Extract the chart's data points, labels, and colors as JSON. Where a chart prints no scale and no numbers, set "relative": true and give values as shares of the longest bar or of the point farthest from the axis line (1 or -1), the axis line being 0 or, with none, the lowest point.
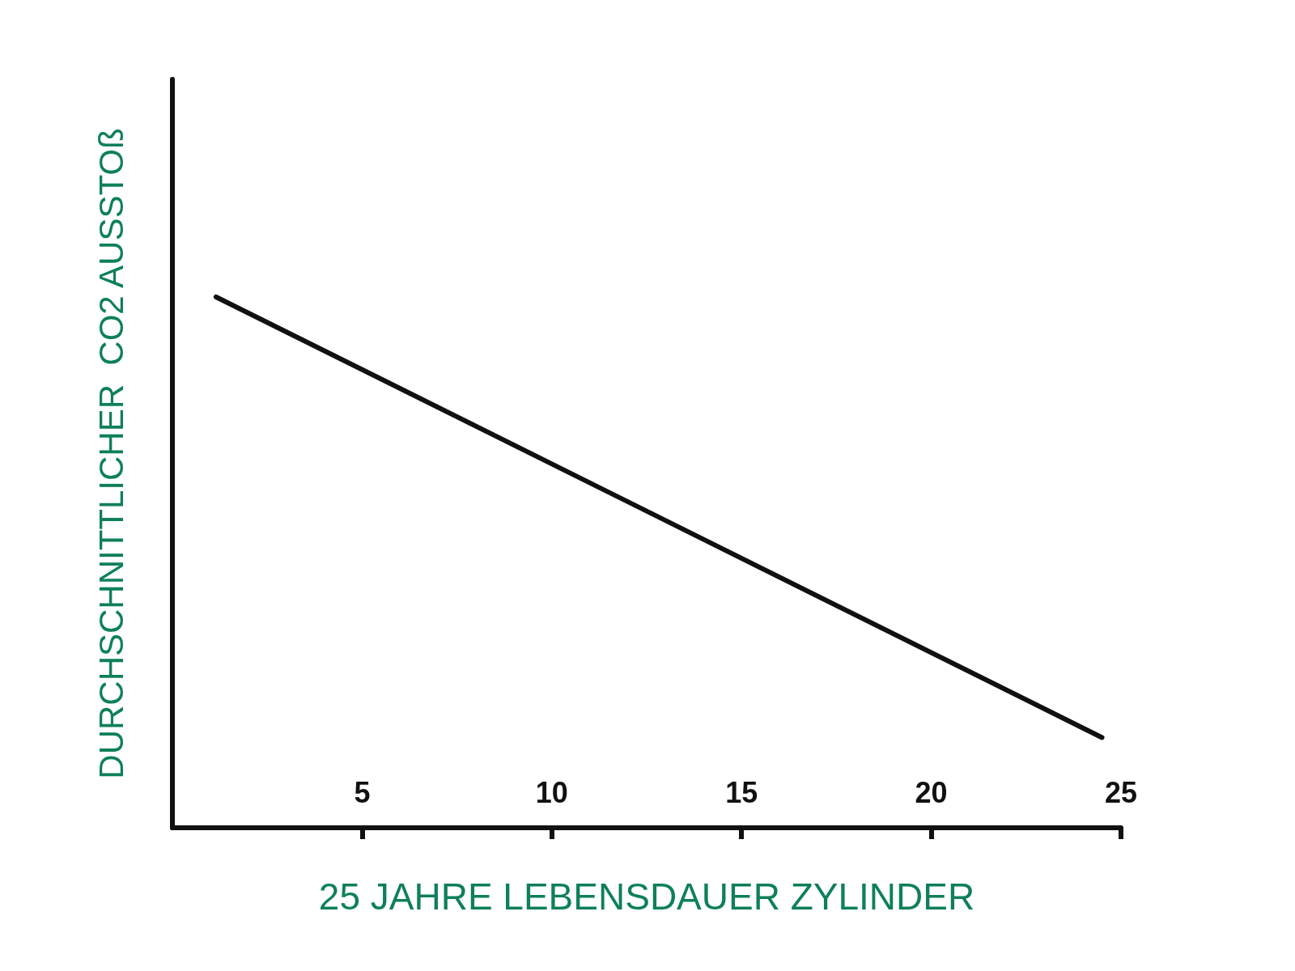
{
  "chart_data": {
    "type": "line",
    "relative": true,
    "xlabel": "25 JAHRE LEBENSDAUER ZYLINDER",
    "ylabel": "DURCHSCHNITTLICHER  CO2 AUSSTOß",
    "xlim": [
      0,
      25
    ],
    "xticks": [
      5,
      10,
      15,
      20,
      25
    ],
    "series": [
      {
        "color": "#111111",
        "x": [
          1.15,
          24.5
        ],
        "values": [
          1,
          0.17
        ]
      }
    ],
    "grid": false,
    "marker": "none",
    "line_style": "solid"
  }
}
